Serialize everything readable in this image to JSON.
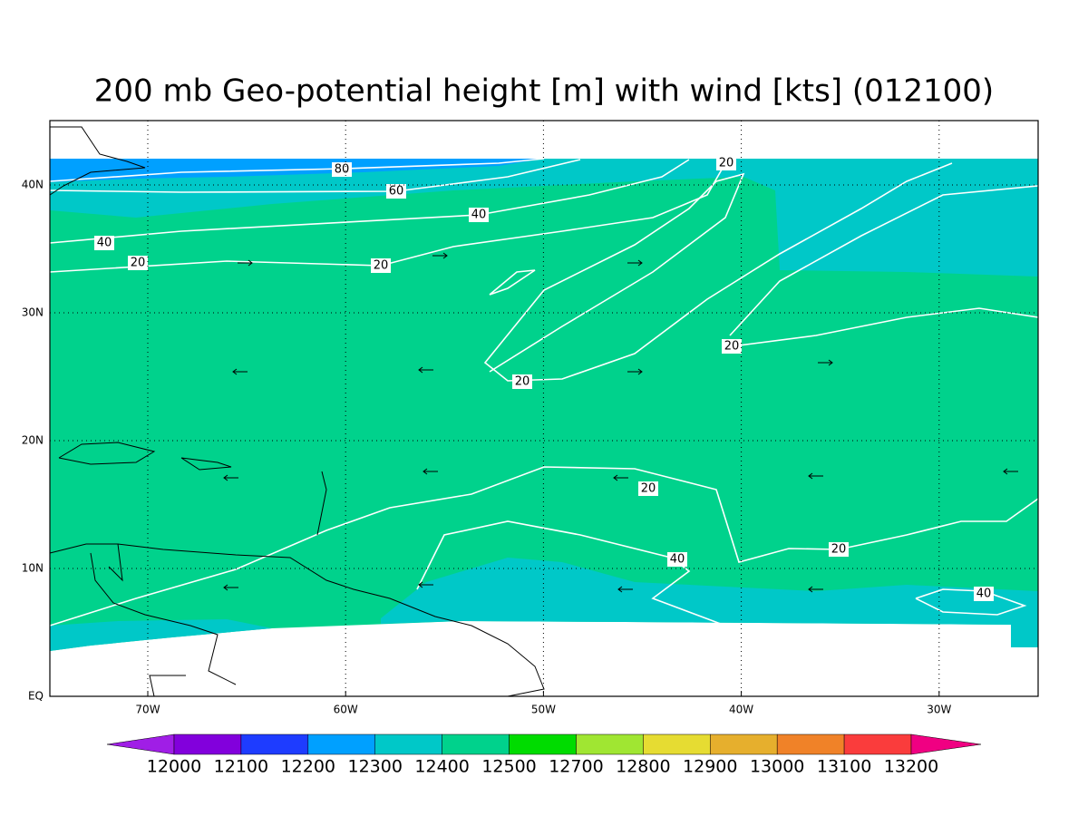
{
  "title": "200 mb Geo-potential height [m] with wind [kts] (012100)",
  "map": {
    "lon_labels": [
      "70W",
      "60W",
      "50W",
      "40W",
      "30W"
    ],
    "lat_labels": [
      "EQ",
      "10N",
      "20N",
      "30N",
      "40N"
    ]
  },
  "contour_labels": [
    "80",
    "60",
    "40",
    "40",
    "20",
    "20",
    "20",
    "20",
    "20",
    "20",
    "20",
    "40",
    "40"
  ],
  "colorbar": {
    "labels": [
      12000,
      12100,
      12200,
      12300,
      12400,
      12500,
      12700,
      12800,
      12900,
      13000,
      13100,
      13200
    ],
    "colors": [
      "#a01ee6",
      "#8200dc",
      "#1e3cff",
      "#00a0ff",
      "#00c8c8",
      "#00d28c",
      "#00dc00",
      "#a0e632",
      "#e6dc32",
      "#e6af2d",
      "#f08228",
      "#fa3c3c",
      "#f00082"
    ]
  }
}
